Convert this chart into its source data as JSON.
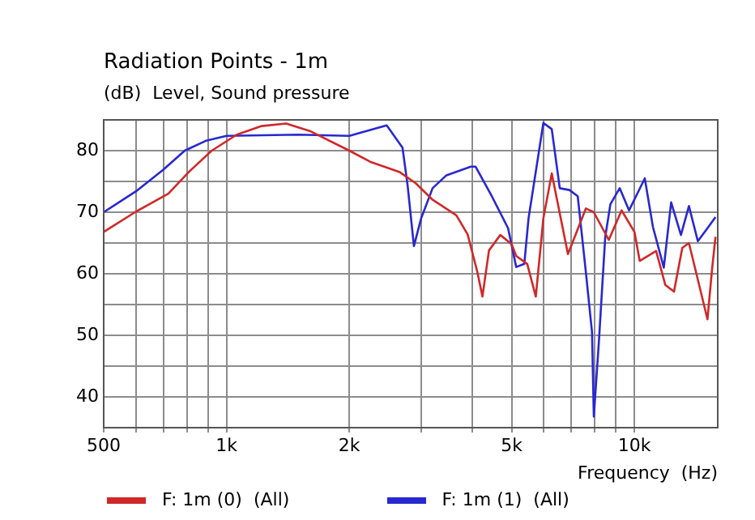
{
  "chart_data": {
    "type": "line",
    "title": "Radiation Points - 1m",
    "subtitle": "(dB)  Level, Sound pressure",
    "xlabel": "Frequency  (Hz)",
    "log": "x",
    "grid": true,
    "legend": "bottom",
    "marker": "none",
    "line_style": "solid",
    "xlim": [
      500,
      16000
    ],
    "ylim": [
      35,
      85
    ],
    "xticks": [
      {
        "value": 500,
        "label": "500"
      },
      {
        "value": 600,
        "label": null
      },
      {
        "value": 700,
        "label": null
      },
      {
        "value": 800,
        "label": null
      },
      {
        "value": 900,
        "label": null
      },
      {
        "value": 1000,
        "label": "1k"
      },
      {
        "value": 2000,
        "label": "2k"
      },
      {
        "value": 3000,
        "label": null
      },
      {
        "value": 4000,
        "label": null
      },
      {
        "value": 5000,
        "label": "5k"
      },
      {
        "value": 6000,
        "label": null
      },
      {
        "value": 7000,
        "label": null
      },
      {
        "value": 8000,
        "label": null
      },
      {
        "value": 9000,
        "label": null
      },
      {
        "value": 10000,
        "label": "10k"
      }
    ],
    "yticks": [
      40,
      {
        "value": 45,
        "label": null
      },
      50,
      {
        "value": 55,
        "label": null
      },
      60,
      {
        "value": 65,
        "label": null
      },
      70,
      {
        "value": 75,
        "label": null
      },
      80
    ],
    "series": [
      {
        "name": "F: 1m (0)  (All)",
        "color": "#d02828",
        "x": [
          500,
          600,
          720,
          810,
          920,
          1060,
          1220,
          1400,
          1600,
          2000,
          2250,
          2660,
          2910,
          3190,
          3660,
          3900,
          4120,
          4240,
          4400,
          4690,
          5000,
          5130,
          5460,
          5730,
          5980,
          6270,
          6870,
          7600,
          7950,
          8650,
          9300,
          10000,
          10300,
          11300,
          11900,
          12500,
          13100,
          13600,
          15100,
          15500,
          15800
        ],
        "values": [
          66.8,
          70.1,
          73,
          76.6,
          80,
          82.6,
          84,
          84.4,
          83.2,
          80,
          78.2,
          76.5,
          74.7,
          72.1,
          69.5,
          66.4,
          60.3,
          56.3,
          63.8,
          66.3,
          64.8,
          62.9,
          61.6,
          56.3,
          69,
          76.3,
          63.2,
          70.6,
          70,
          65.5,
          70.3,
          66.8,
          62.1,
          63.7,
          58.2,
          57.1,
          64.2,
          65,
          52.6,
          60.8,
          66
        ]
      },
      {
        "name": "F: 1m (1)  (All)",
        "color": "#2828d0",
        "x": [
          500,
          600,
          700,
          790,
          890,
          1000,
          1500,
          2000,
          2470,
          2700,
          2780,
          2880,
          3000,
          3200,
          3460,
          3970,
          4080,
          4470,
          4900,
          5130,
          5370,
          5500,
          5980,
          6270,
          6560,
          6930,
          7260,
          7600,
          7870,
          7950,
          8180,
          8480,
          8730,
          9200,
          9700,
          10600,
          11100,
          11800,
          12300,
          13000,
          13600,
          14300,
          15100,
          15800
        ],
        "values": [
          70,
          73.4,
          76.9,
          80,
          81.6,
          82.4,
          82.6,
          82.4,
          84.1,
          80.5,
          74.3,
          64.5,
          69,
          73.9,
          76,
          77.4,
          77.4,
          72.6,
          67.4,
          61.1,
          61.6,
          69,
          84.5,
          83.5,
          73.9,
          73.6,
          72.6,
          60.3,
          50.5,
          36.8,
          48.9,
          66,
          71.3,
          73.9,
          70.3,
          75.5,
          67.6,
          61,
          71.6,
          66.3,
          71,
          65.3,
          67.4,
          69.2
        ]
      }
    ]
  }
}
